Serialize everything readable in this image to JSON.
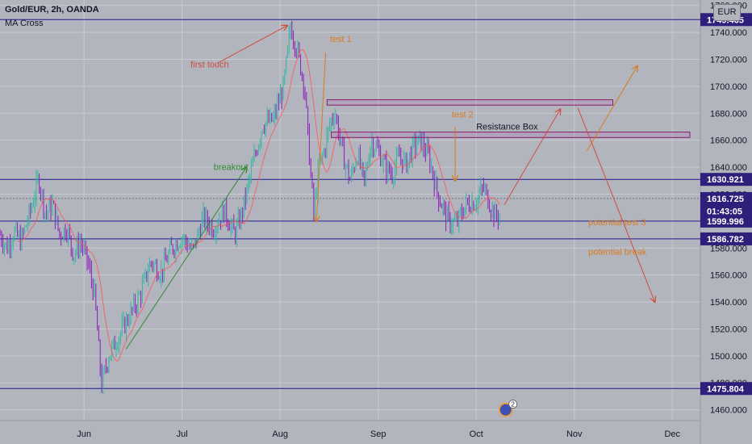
{
  "header": {
    "title": "Gold/EUR, 2h, OANDA",
    "indicator": "MA Cross",
    "currency": "EUR"
  },
  "colors": {
    "background": "#b2b5be",
    "grid": "#c8cad1",
    "level_line": "#1a1a8c",
    "up_candle": "#2fb8a0",
    "down_candle": "#8c1dbb",
    "ma": "#ff5252",
    "label_bg": "#2e1f7a",
    "annot_red": "#d14a3c",
    "annot_orange": "#d97b1c",
    "annot_green": "#2f8a2f"
  },
  "chart_data": {
    "type": "candlestick",
    "title": "Gold/EUR, 2h, OANDA",
    "indicator": "MA Cross",
    "ylim": [
      1452,
      1764
    ],
    "x_ticks": [
      "Jun",
      "Jul",
      "Aug",
      "Sep",
      "Oct",
      "Nov",
      "Dec"
    ],
    "y_ticks": [
      1460,
      1480,
      1500,
      1520,
      1540,
      1560,
      1580,
      1600,
      1620,
      1640,
      1660,
      1680,
      1700,
      1720,
      1740,
      1760
    ],
    "x_tick_positions": [
      0.12,
      0.26,
      0.4,
      0.54,
      0.68,
      0.82,
      0.96
    ],
    "price_path": [
      [
        0.0,
        1590
      ],
      [
        0.01,
        1580
      ],
      [
        0.02,
        1592
      ],
      [
        0.03,
        1585
      ],
      [
        0.045,
        1610
      ],
      [
        0.055,
        1632
      ],
      [
        0.065,
        1605
      ],
      [
        0.075,
        1612
      ],
      [
        0.085,
        1590
      ],
      [
        0.095,
        1595
      ],
      [
        0.105,
        1575
      ],
      [
        0.115,
        1585
      ],
      [
        0.125,
        1570
      ],
      [
        0.135,
        1545
      ],
      [
        0.145,
        1478
      ],
      [
        0.155,
        1500
      ],
      [
        0.165,
        1510
      ],
      [
        0.18,
        1525
      ],
      [
        0.2,
        1545
      ],
      [
        0.215,
        1570
      ],
      [
        0.23,
        1562
      ],
      [
        0.245,
        1580
      ],
      [
        0.26,
        1588
      ],
      [
        0.275,
        1578
      ],
      [
        0.29,
        1602
      ],
      [
        0.305,
        1595
      ],
      [
        0.32,
        1608
      ],
      [
        0.335,
        1590
      ],
      [
        0.345,
        1605
      ],
      [
        0.36,
        1640
      ],
      [
        0.375,
        1672
      ],
      [
        0.39,
        1675
      ],
      [
        0.405,
        1700
      ],
      [
        0.415,
        1745
      ],
      [
        0.425,
        1725
      ],
      [
        0.435,
        1700
      ],
      [
        0.44,
        1660
      ],
      [
        0.448,
        1605
      ],
      [
        0.455,
        1640
      ],
      [
        0.462,
        1650
      ],
      [
        0.47,
        1670
      ],
      [
        0.478,
        1682
      ],
      [
        0.49,
        1648
      ],
      [
        0.5,
        1630
      ],
      [
        0.51,
        1650
      ],
      [
        0.52,
        1628
      ],
      [
        0.53,
        1660
      ],
      [
        0.54,
        1652
      ],
      [
        0.55,
        1640
      ],
      [
        0.56,
        1635
      ],
      [
        0.57,
        1648
      ],
      [
        0.58,
        1642
      ],
      [
        0.59,
        1655
      ],
      [
        0.6,
        1660
      ],
      [
        0.612,
        1648
      ],
      [
        0.625,
        1620
      ],
      [
        0.632,
        1610
      ],
      [
        0.64,
        1600
      ],
      [
        0.652,
        1598
      ],
      [
        0.665,
        1612
      ],
      [
        0.68,
        1615
      ],
      [
        0.69,
        1625
      ],
      [
        0.7,
        1612
      ],
      [
        0.708,
        1603
      ],
      [
        0.715,
        1606
      ]
    ],
    "horizontal_levels": [
      1749.465,
      1630.921,
      1616.725,
      1599.996,
      1586.782,
      1475.804
    ],
    "price_labels": [
      {
        "value": 1749.465,
        "text": "1749.465"
      },
      {
        "value": 1630.921,
        "text": "1630.921"
      },
      {
        "value": 1616.725,
        "text": "1616.725"
      },
      {
        "value": 1607.5,
        "text": "01:43:05"
      },
      {
        "value": 1599.996,
        "text": "1599.996"
      },
      {
        "value": 1586.782,
        "text": "1586.782"
      },
      {
        "value": 1475.804,
        "text": "1475.804"
      }
    ],
    "current_price": 1616.725,
    "countdown": "01:43:05",
    "boxes": [
      {
        "x0": 0.467,
        "x1": 0.875,
        "y0": 1690,
        "y1": 1686
      },
      {
        "x0": 0.473,
        "x1": 0.985,
        "y0": 1662,
        "y1": 1666
      }
    ],
    "annotations": [
      {
        "text": "first touch",
        "x": 0.272,
        "y": 1714,
        "color": "annot_red"
      },
      {
        "text": "test 1",
        "x": 0.471,
        "y": 1733,
        "color": "annot_orange"
      },
      {
        "text": "test 2",
        "x": 0.645,
        "y": 1677,
        "color": "annot_orange"
      },
      {
        "text": "Resistance Box",
        "x": 0.68,
        "y": 1668,
        "color": "dark"
      },
      {
        "text": "breakout",
        "x": 0.305,
        "y": 1638,
        "color": "annot_green"
      },
      {
        "text": "potential test 3",
        "x": 0.84,
        "y": 1597,
        "color": "annot_orange"
      },
      {
        "text": "potential break",
        "x": 0.84,
        "y": 1575,
        "color": "annot_orange"
      }
    ],
    "arrows": [
      {
        "x0": 0.31,
        "y0": 1717,
        "x1": 0.41,
        "y1": 1745,
        "color": "annot_red"
      },
      {
        "x0": 0.465,
        "y0": 1725,
        "x1": 0.452,
        "y1": 1600,
        "color": "annot_orange"
      },
      {
        "x0": 0.65,
        "y0": 1670,
        "x1": 0.65,
        "y1": 1630,
        "color": "annot_orange"
      },
      {
        "x0": 0.18,
        "y0": 1505,
        "x1": 0.352,
        "y1": 1640,
        "color": "annot_green"
      },
      {
        "x0": 0.72,
        "y0": 1612,
        "x1": 0.8,
        "y1": 1683,
        "color": "annot_red"
      },
      {
        "x0": 0.838,
        "y0": 1652,
        "x1": 0.91,
        "y1": 1715,
        "color": "annot_orange"
      },
      {
        "x0": 0.825,
        "y0": 1684,
        "x1": 0.935,
        "y1": 1540,
        "color": "annot_red"
      }
    ],
    "event_badge": {
      "x": 0.722,
      "y": 1460,
      "count": "2"
    }
  }
}
